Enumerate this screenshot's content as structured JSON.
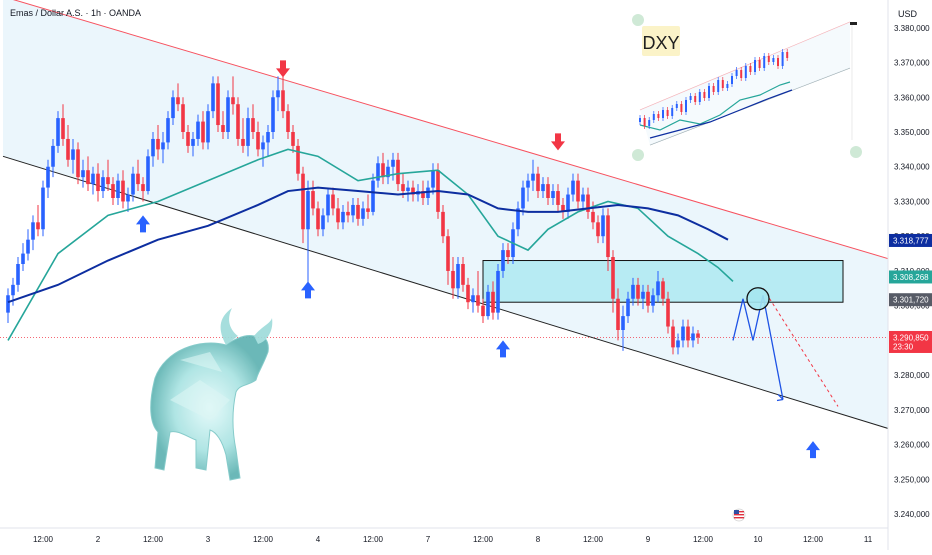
{
  "header": {
    "symbol_line": "Emas / Dollar A.S. · 1h · OANDA",
    "currency": "USD"
  },
  "colors": {
    "up": "#2962ff",
    "down": "#f23645",
    "ema_fast": "#26a69a",
    "ema_slow": "#0d2ea0",
    "channel_line": "#f7525f",
    "channel_fill": "#dbeefa",
    "zone": "#a5e7f0",
    "projection": "#1e53e5"
  },
  "chart_data": {
    "type": "candlestick",
    "symbol": "Emas / Dollar A.S.",
    "interval": "1h",
    "source": "OANDA",
    "y_axis": {
      "unit": "USD",
      "ylim": [
        3236.0,
        3388.0
      ],
      "ticks": [
        "3.380,000",
        "3.370,000",
        "3.360,000",
        "3.350,000",
        "3.340,000",
        "3.330,000",
        "3.320,000",
        "3.310,000",
        "3.300,000",
        "3.290,000",
        "3.280,000",
        "3.270,000",
        "3.260,000",
        "3.250,000",
        "3.240,000"
      ],
      "tick_values": [
        3380,
        3370,
        3360,
        3350,
        3340,
        3330,
        3320,
        3310,
        3300,
        3290,
        3280,
        3270,
        3260,
        3250,
        3240
      ]
    },
    "x_axis": {
      "ticks": [
        "12:00",
        "2",
        "12:00",
        "3",
        "12:00",
        "4",
        "12:00",
        "7",
        "12:00",
        "8",
        "12:00",
        "9",
        "12:00",
        "10",
        "12:00",
        "11"
      ],
      "tick_index": [
        7,
        18,
        29,
        40,
        51,
        62,
        73,
        84,
        95,
        106,
        117,
        128,
        139,
        150,
        161,
        172
      ]
    },
    "price_labels": [
      {
        "text": "3.318,777",
        "value": 3318.777,
        "bg": "#0d2ea0",
        "fg": "#ffffff"
      },
      {
        "text": "3.308,268",
        "value": 3308.268,
        "bg": "#26a69a",
        "fg": "#ffffff"
      },
      {
        "text": "3.301,720",
        "value": 3301.72,
        "bg": "#575b66",
        "fg": "#ffffff"
      },
      {
        "text": "3.290,850",
        "value": 3290.85,
        "bg": "#f23645",
        "fg": "#ffffff",
        "sub": "23:30"
      }
    ],
    "current_price": 3290.85,
    "candles": [
      [
        3298.0,
        3305.0,
        3295.0,
        3303.0
      ],
      [
        3303.0,
        3308.0,
        3300.0,
        3306.0
      ],
      [
        3306.0,
        3314.0,
        3304.0,
        3312.0
      ],
      [
        3312.0,
        3318.0,
        3310.0,
        3315.0
      ],
      [
        3315.0,
        3322.0,
        3313.0,
        3319.0
      ],
      [
        3319.0,
        3326.0,
        3316.0,
        3324.0
      ],
      [
        3324.0,
        3329.0,
        3320.0,
        3322.0
      ],
      [
        3322.0,
        3336.0,
        3320.0,
        3334.0
      ],
      [
        3334.0,
        3342.0,
        3331.0,
        3340.0
      ],
      [
        3340.0,
        3348.0,
        3337.0,
        3346.0
      ],
      [
        3346.0,
        3356.0,
        3344.0,
        3354.0
      ],
      [
        3354.0,
        3358.0,
        3346.0,
        3348.0
      ],
      [
        3348.0,
        3352.0,
        3340.0,
        3342.0
      ],
      [
        3342.0,
        3348.0,
        3338.0,
        3345.0
      ],
      [
        3345.0,
        3347.0,
        3335.0,
        3337.0
      ],
      [
        3337.0,
        3342.0,
        3334.0,
        3339.0
      ],
      [
        3339.0,
        3343.0,
        3333.0,
        3335.0
      ],
      [
        3335.0,
        3340.0,
        3332.0,
        3338.0
      ],
      [
        3338.0,
        3341.0,
        3330.0,
        3333.0
      ],
      [
        3333.0,
        3339.0,
        3331.0,
        3337.0
      ],
      [
        3337.0,
        3342.0,
        3333.0,
        3335.0
      ],
      [
        3335.0,
        3337.0,
        3329.0,
        3331.0
      ],
      [
        3331.0,
        3338.0,
        3329.0,
        3336.0
      ],
      [
        3336.0,
        3339.0,
        3328.0,
        3330.0
      ],
      [
        3330.0,
        3334.0,
        3327.0,
        3332.0
      ],
      [
        3332.0,
        3340.0,
        3330.0,
        3338.0
      ],
      [
        3338.0,
        3342.0,
        3333.0,
        3335.0
      ],
      [
        3335.0,
        3337.0,
        3330.0,
        3333.0
      ],
      [
        3333.0,
        3345.0,
        3332.0,
        3343.0
      ],
      [
        3343.0,
        3350.0,
        3340.0,
        3348.0
      ],
      [
        3348.0,
        3352.0,
        3342.0,
        3345.0
      ],
      [
        3345.0,
        3350.0,
        3341.0,
        3347.0
      ],
      [
        3347.0,
        3356.0,
        3345.0,
        3354.0
      ],
      [
        3354.0,
        3362.0,
        3352.0,
        3360.0
      ],
      [
        3360.0,
        3364.0,
        3356.0,
        3358.0
      ],
      [
        3358.0,
        3360.0,
        3348.0,
        3350.0
      ],
      [
        3350.0,
        3352.0,
        3344.0,
        3346.0
      ],
      [
        3346.0,
        3350.0,
        3343.0,
        3348.0
      ],
      [
        3348.0,
        3355.0,
        3346.0,
        3353.0
      ],
      [
        3353.0,
        3356.0,
        3345.0,
        3347.0
      ],
      [
        3347.0,
        3358.0,
        3345.0,
        3356.0
      ],
      [
        3356.0,
        3366.0,
        3354.0,
        3364.0
      ],
      [
        3364.0,
        3366.0,
        3350.0,
        3352.0
      ],
      [
        3352.0,
        3356.0,
        3348.0,
        3350.0
      ],
      [
        3350.0,
        3362.0,
        3348.0,
        3360.0
      ],
      [
        3360.0,
        3366.0,
        3355.0,
        3358.0
      ],
      [
        3358.0,
        3360.0,
        3346.0,
        3348.0
      ],
      [
        3348.0,
        3354.0,
        3344.0,
        3346.0
      ],
      [
        3346.0,
        3357.0,
        3343.0,
        3354.0
      ],
      [
        3354.0,
        3358.0,
        3348.0,
        3350.0
      ],
      [
        3350.0,
        3353.0,
        3343.0,
        3345.0
      ],
      [
        3345.0,
        3349.0,
        3340.0,
        3347.0
      ],
      [
        3347.0,
        3352.0,
        3343.0,
        3350.0
      ],
      [
        3350.0,
        3362.0,
        3348.0,
        3360.0
      ],
      [
        3360.0,
        3366.0,
        3356.0,
        3362.0
      ],
      [
        3362.0,
        3366.0,
        3354.0,
        3356.0
      ],
      [
        3356.0,
        3358.0,
        3348.0,
        3350.0
      ],
      [
        3350.0,
        3352.0,
        3344.0,
        3346.0
      ],
      [
        3346.0,
        3348.0,
        3336.0,
        3338.0
      ],
      [
        3338.0,
        3340.0,
        3318.0,
        3322.0
      ],
      [
        3322.0,
        3336.0,
        3306.0,
        3333.0
      ],
      [
        3333.0,
        3336.0,
        3326.0,
        3328.0
      ],
      [
        3328.0,
        3330.0,
        3320.0,
        3322.0
      ],
      [
        3322.0,
        3328.0,
        3320.0,
        3326.0
      ],
      [
        3326.0,
        3334.0,
        3324.0,
        3332.0
      ],
      [
        3332.0,
        3334.0,
        3326.0,
        3328.0
      ],
      [
        3328.0,
        3331.0,
        3322.0,
        3324.0
      ],
      [
        3324.0,
        3329.0,
        3322.0,
        3327.0
      ],
      [
        3327.0,
        3330.0,
        3324.0,
        3326.0
      ],
      [
        3326.0,
        3331.0,
        3324.0,
        3329.0
      ],
      [
        3329.0,
        3331.0,
        3323.0,
        3325.0
      ],
      [
        3325.0,
        3330.0,
        3323.0,
        3328.0
      ],
      [
        3328.0,
        3332.0,
        3325.0,
        3327.0
      ],
      [
        3327.0,
        3338.0,
        3326.0,
        3336.0
      ],
      [
        3336.0,
        3343.0,
        3334.0,
        3341.0
      ],
      [
        3341.0,
        3344.0,
        3335.0,
        3337.0
      ],
      [
        3337.0,
        3342.0,
        3335.0,
        3340.0
      ],
      [
        3340.0,
        3344.0,
        3336.0,
        3342.0
      ],
      [
        3342.0,
        3344.0,
        3333.0,
        3335.0
      ],
      [
        3335.0,
        3338.0,
        3331.0,
        3333.0
      ],
      [
        3333.0,
        3336.0,
        3330.0,
        3334.0
      ],
      [
        3334.0,
        3336.0,
        3330.0,
        3332.0
      ],
      [
        3332.0,
        3335.0,
        3330.0,
        3333.0
      ],
      [
        3333.0,
        3336.0,
        3329.0,
        3331.0
      ],
      [
        3331.0,
        3336.0,
        3329.0,
        3334.0
      ],
      [
        3334.0,
        3341.0,
        3332.0,
        3339.0
      ],
      [
        3339.0,
        3341.0,
        3325.0,
        3327.0
      ],
      [
        3327.0,
        3329.0,
        3318.0,
        3320.0
      ],
      [
        3320.0,
        3322.0,
        3306.0,
        3310.0
      ],
      [
        3310.0,
        3314.0,
        3302.0,
        3305.0
      ],
      [
        3305.0,
        3314.0,
        3302.0,
        3312.0
      ],
      [
        3312.0,
        3314.0,
        3304.0,
        3306.0
      ],
      [
        3306.0,
        3308.0,
        3299.0,
        3301.0
      ],
      [
        3301.0,
        3305.0,
        3298.0,
        3303.0
      ],
      [
        3303.0,
        3310.0,
        3298.0,
        3300.0
      ],
      [
        3300.0,
        3302.0,
        3295.0,
        3297.0
      ],
      [
        3297.0,
        3306.0,
        3296.0,
        3304.0
      ],
      [
        3304.0,
        3307.0,
        3296.0,
        3298.0
      ],
      [
        3298.0,
        3312.0,
        3296.0,
        3310.0
      ],
      [
        3310.0,
        3318.0,
        3308.0,
        3316.0
      ],
      [
        3316.0,
        3318.0,
        3312.0,
        3314.0
      ],
      [
        3314.0,
        3324.0,
        3312.0,
        3322.0
      ],
      [
        3322.0,
        3330.0,
        3320.0,
        3328.0
      ],
      [
        3328.0,
        3336.0,
        3326.0,
        3334.0
      ],
      [
        3334.0,
        3338.0,
        3330.0,
        3336.0
      ],
      [
        3336.0,
        3342.0,
        3333.0,
        3338.0
      ],
      [
        3338.0,
        3340.0,
        3331.0,
        3333.0
      ],
      [
        3333.0,
        3337.0,
        3331.0,
        3335.0
      ],
      [
        3335.0,
        3337.0,
        3329.0,
        3331.0
      ],
      [
        3331.0,
        3335.0,
        3329.0,
        3333.0
      ],
      [
        3333.0,
        3335.0,
        3327.0,
        3329.0
      ],
      [
        3329.0,
        3331.0,
        3325.0,
        3327.0
      ],
      [
        3327.0,
        3334.0,
        3325.0,
        3332.0
      ],
      [
        3332.0,
        3338.0,
        3330.0,
        3336.0
      ],
      [
        3336.0,
        3338.0,
        3328.0,
        3330.0
      ],
      [
        3330.0,
        3334.0,
        3328.0,
        3332.0
      ],
      [
        3332.0,
        3334.0,
        3325.0,
        3327.0
      ],
      [
        3327.0,
        3330.0,
        3322.0,
        3324.0
      ],
      [
        3324.0,
        3326.0,
        3318.0,
        3320.0
      ],
      [
        3320.0,
        3328.0,
        3318.0,
        3326.0
      ],
      [
        3326.0,
        3328.0,
        3310.0,
        3314.0
      ],
      [
        3314.0,
        3316.0,
        3298.0,
        3302.0
      ],
      [
        3302.0,
        3305.0,
        3290.0,
        3293.0
      ],
      [
        3293.0,
        3300.0,
        3287.0,
        3297.0
      ],
      [
        3297.0,
        3304.0,
        3295.0,
        3302.0
      ],
      [
        3302.0,
        3308.0,
        3300.0,
        3306.0
      ],
      [
        3306.0,
        3308.0,
        3300.0,
        3302.0
      ],
      [
        3302.0,
        3306.0,
        3299.0,
        3304.0
      ],
      [
        3304.0,
        3306.0,
        3298.0,
        3300.0
      ],
      [
        3300.0,
        3305.0,
        3298.0,
        3303.0
      ],
      [
        3303.0,
        3310.0,
        3301.0,
        3307.0
      ],
      [
        3307.0,
        3308.0,
        3300.0,
        3302.0
      ],
      [
        3302.0,
        3304.0,
        3292.0,
        3294.0
      ],
      [
        3294.0,
        3296.0,
        3286.0,
        3288.0
      ],
      [
        3288.0,
        3292.0,
        3286.0,
        3290.0
      ],
      [
        3290.0,
        3296.0,
        3288.0,
        3294.0
      ],
      [
        3294.0,
        3296.0,
        3288.0,
        3290.0
      ],
      [
        3290.0,
        3294.0,
        3288.0,
        3292.0
      ],
      [
        3292.0,
        3293.0,
        3289.0,
        3290.85
      ]
    ],
    "ema_fast": {
      "name": "",
      "points": [
        [
          0,
          3290
        ],
        [
          10,
          3315
        ],
        [
          20,
          3326
        ],
        [
          30,
          3330
        ],
        [
          40,
          3336
        ],
        [
          50,
          3342
        ],
        [
          56,
          3345
        ],
        [
          62,
          3343
        ],
        [
          70,
          3336
        ],
        [
          78,
          3338
        ],
        [
          86,
          3339
        ],
        [
          92,
          3332
        ],
        [
          98,
          3320
        ],
        [
          104,
          3316
        ],
        [
          108,
          3322
        ],
        [
          114,
          3327
        ],
        [
          120,
          3330
        ],
        [
          126,
          3328
        ],
        [
          132,
          3320
        ],
        [
          138,
          3315
        ],
        [
          142,
          3311
        ],
        [
          145,
          3307
        ]
      ]
    },
    "ema_slow": {
      "name": "",
      "points": [
        [
          0,
          3301
        ],
        [
          10,
          3306
        ],
        [
          20,
          3313
        ],
        [
          30,
          3319
        ],
        [
          40,
          3323
        ],
        [
          50,
          3329
        ],
        [
          56,
          3333
        ],
        [
          62,
          3334
        ],
        [
          70,
          3333
        ],
        [
          78,
          3332
        ],
        [
          86,
          3333
        ],
        [
          92,
          3332
        ],
        [
          98,
          3328
        ],
        [
          104,
          3327
        ],
        [
          110,
          3327
        ],
        [
          116,
          3328
        ],
        [
          122,
          3329
        ],
        [
          128,
          3328
        ],
        [
          134,
          3326
        ],
        [
          140,
          3322
        ],
        [
          144,
          3319
        ]
      ]
    },
    "channel": {
      "upper": [
        [
          -1,
          3389
        ],
        [
          182,
          3311
        ]
      ],
      "lower": [
        [
          -1,
          3343
        ],
        [
          182,
          3262
        ]
      ]
    },
    "zone": {
      "x_from": 95,
      "x_to": 167,
      "y_low": 3301,
      "y_high": 3313
    },
    "markers": {
      "down_arrows": [
        [
          55,
          3366
        ],
        [
          110,
          3345
        ]
      ],
      "up_arrows": [
        [
          27,
          3326
        ],
        [
          60,
          3307
        ],
        [
          99,
          3290
        ],
        [
          161,
          3261
        ]
      ]
    },
    "projection": {
      "solid": [
        [
          145,
          3290
        ],
        [
          147,
          3302
        ],
        [
          149,
          3290
        ],
        [
          151,
          3303
        ],
        [
          155,
          3273
        ]
      ],
      "dashed": [
        [
          151,
          3305
        ],
        [
          166,
          3271
        ]
      ],
      "circle": [
        150,
        3302
      ]
    }
  },
  "inset": {
    "label": "DXY",
    "axis_values": [
      "",
      "",
      "",
      "",
      "",
      "",
      "",
      "",
      "",
      "",
      ""
    ]
  },
  "event_icon": "us-flag-icon"
}
